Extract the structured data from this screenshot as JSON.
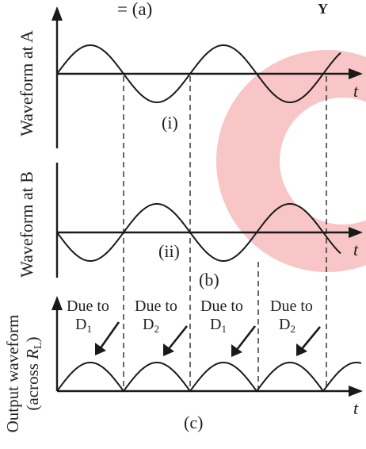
{
  "top_fragments": {
    "left": "= (a)",
    "right": "Y"
  },
  "panels": [
    {
      "id": "i",
      "ylabel": "Waveform at A",
      "tag": "(i)",
      "axis_label": "t"
    },
    {
      "id": "ii",
      "ylabel": "Waveform at B",
      "tag": "(ii)",
      "axis_label": "t"
    },
    {
      "id": "c",
      "ylabel_line1": "Output waveform",
      "ylabel_line2_prefix": "(across ",
      "ylabel_line2_var": "R",
      "ylabel_line2_sub": "L",
      "ylabel_line2_suffix": ")",
      "tag": "(c)",
      "axis_label": "t"
    }
  ],
  "middle_tag": "(b)",
  "annotations": [
    {
      "prefix": "Due to",
      "diode": "D",
      "sub": "1"
    },
    {
      "prefix": "Due to",
      "diode": "D",
      "sub": "2"
    },
    {
      "prefix": "Due to",
      "diode": "D",
      "sub": "1"
    },
    {
      "prefix": "Due to",
      "diode": "D",
      "sub": "2"
    }
  ],
  "colors": {
    "ring": "#f4a0a0",
    "ink": "#1a1a1a"
  }
}
